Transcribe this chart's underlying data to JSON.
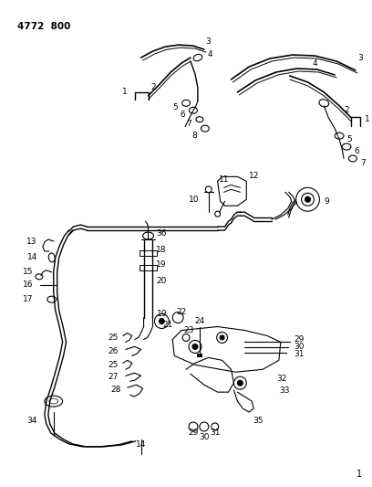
{
  "bg_color": "#ffffff",
  "line_color": "#000000",
  "text_color": "#000000",
  "figsize": [
    4.08,
    5.33
  ],
  "dpi": 100
}
